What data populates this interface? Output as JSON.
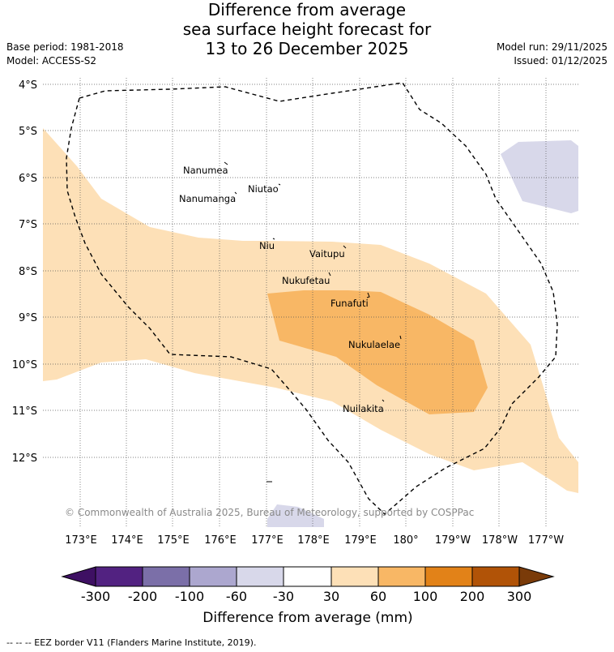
{
  "title": {
    "line1": "Difference from average",
    "line2": "sea surface height forecast for",
    "line3": "13 to 26 December 2025"
  },
  "meta": {
    "base_period": "Base period: 1981-2018",
    "model": "Model: ACCESS-S2",
    "model_run": "Model run: 29/11/2025",
    "issued": "Issued: 01/12/2025"
  },
  "map": {
    "lat_labels": [
      "4°S",
      "5°S",
      "6°S",
      "7°S",
      "8°S",
      "9°S",
      "10°S",
      "11°S",
      "12°S"
    ],
    "lon_labels": [
      "173°E",
      "174°E",
      "175°E",
      "176°E",
      "177°E",
      "178°E",
      "179°E",
      "180°",
      "179°W",
      "178°W",
      "177°W"
    ],
    "places": [
      "Nanumea",
      "Nanumanga",
      "Niutao",
      "Niu",
      "Vaitupu",
      "Nukufetau",
      "Funafuti",
      "Nukulaelae",
      "Nuilakita"
    ],
    "copyright": "© Commonwealth of Australia 2025, Bureau of Meteorology, supported by COSPPac",
    "colors": {
      "positive_light": "#fde0b7",
      "positive_mid": "#f8b765",
      "negative_light": "#d8d8ea"
    }
  },
  "colorbar": {
    "tick_labels": [
      "-300",
      "-200",
      "-100",
      "-60",
      "-30",
      "30",
      "60",
      "100",
      "200",
      "300"
    ],
    "colors": [
      "#3e1063",
      "#522281",
      "#7b6fa8",
      "#aca7cf",
      "#d8d8ea",
      "#ffffff",
      "#fde0b7",
      "#f8b765",
      "#e28218",
      "#b15307",
      "#7a3b09"
    ],
    "label": "Difference from average (mm)"
  },
  "footer": "--  --  -- EEZ border V11 (Flanders Marine Institute, 2019)."
}
